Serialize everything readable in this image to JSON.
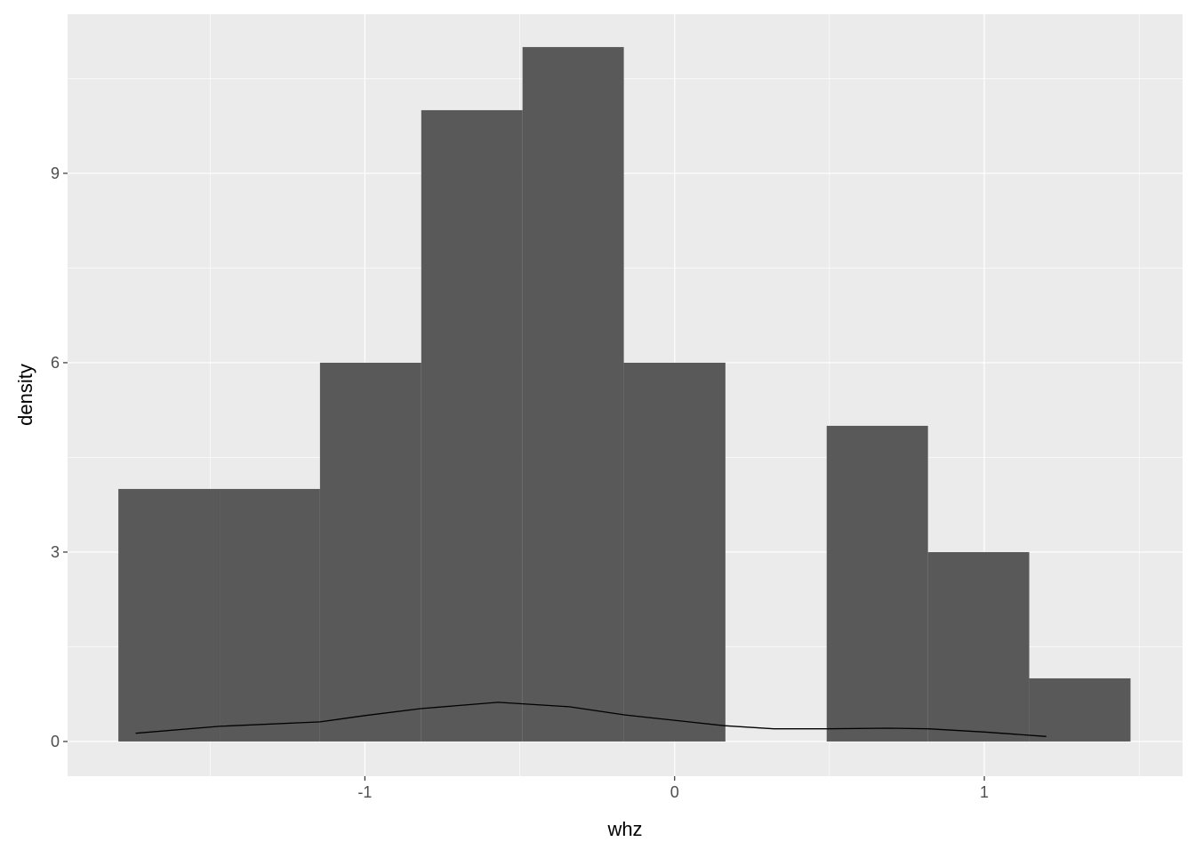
{
  "chart_data": {
    "type": "bar",
    "subtype": "histogram with density line",
    "xlabel": "whz",
    "ylabel": "density",
    "xlim": [
      -1.96,
      1.64
    ],
    "ylim": [
      -0.55,
      11.52
    ],
    "x_ticks": [
      -1,
      0,
      1
    ],
    "x_tick_labels": [
      "-1",
      "0",
      "1"
    ],
    "y_ticks": [
      0,
      3,
      6,
      9
    ],
    "y_tick_labels": [
      "0",
      "3",
      "6",
      "9"
    ],
    "x_minor": [
      -1.5,
      -0.5,
      0.5,
      1.5
    ],
    "y_minor": [
      1.5,
      4.5,
      7.5,
      10.5
    ],
    "grid": true,
    "bins": [
      {
        "x0": -1.796,
        "x1": -1.469,
        "value": 4
      },
      {
        "x0": -1.469,
        "x1": -1.145,
        "value": 4
      },
      {
        "x0": -1.145,
        "x1": -0.818,
        "value": 6
      },
      {
        "x0": -0.818,
        "x1": -0.491,
        "value": 10
      },
      {
        "x0": -0.491,
        "x1": -0.164,
        "value": 11
      },
      {
        "x0": -0.164,
        "x1": 0.164,
        "value": 6
      },
      {
        "x0": 0.164,
        "x1": 0.491,
        "value": 0
      },
      {
        "x0": 0.491,
        "x1": 0.818,
        "value": 5
      },
      {
        "x0": 0.818,
        "x1": 1.145,
        "value": 3
      },
      {
        "x0": 1.145,
        "x1": 1.472,
        "value": 1
      }
    ],
    "density_line": {
      "x": [
        -1.74,
        -1.47,
        -1.145,
        -1.0,
        -0.82,
        -0.57,
        -0.34,
        -0.16,
        0.16,
        0.32,
        0.49,
        0.69,
        0.82,
        1.0,
        1.2
      ],
      "y": [
        0.13,
        0.24,
        0.31,
        0.41,
        0.52,
        0.62,
        0.55,
        0.42,
        0.25,
        0.2,
        0.2,
        0.21,
        0.2,
        0.15,
        0.08
      ]
    },
    "colors": {
      "panel": "#EBEBEB",
      "grid": "#FFFFFF",
      "bar": "#595959",
      "line": "#000000",
      "text": "#4D4D4D"
    }
  }
}
